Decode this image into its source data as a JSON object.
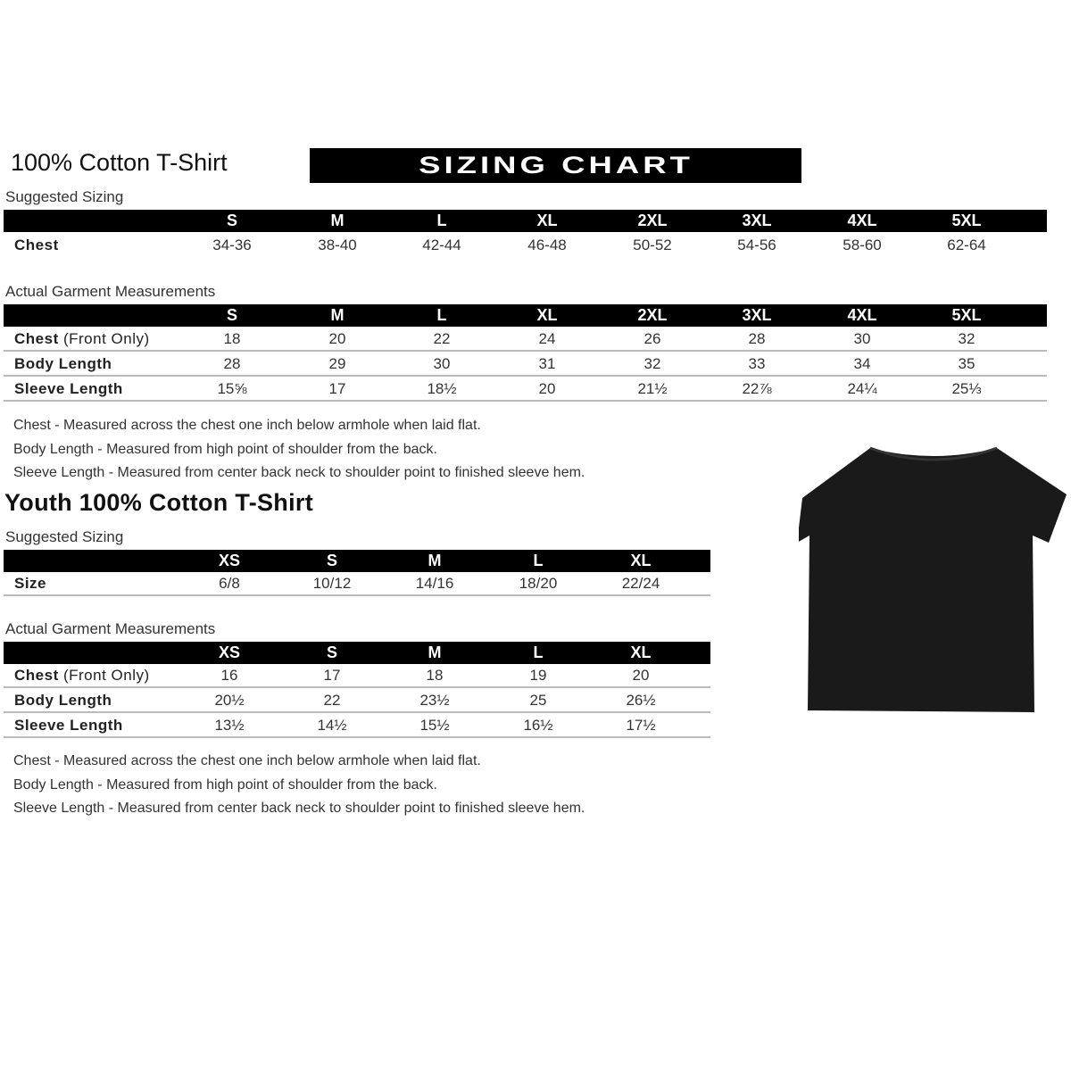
{
  "banner": "SIZING CHART",
  "adult": {
    "title": "100% Cotton T-Shirt",
    "suggested_label": "Suggested Sizing",
    "sizes": [
      "S",
      "M",
      "L",
      "XL",
      "2XL",
      "3XL",
      "4XL",
      "5XL"
    ],
    "suggested_rows": [
      {
        "label": "Chest",
        "values": [
          "34-36",
          "38-40",
          "42-44",
          "46-48",
          "50-52",
          "54-56",
          "58-60",
          "62-64"
        ]
      }
    ],
    "actual_label": "Actual Garment Measurements",
    "actual_rows": [
      {
        "label": "Chest",
        "suffix": " (Front Only)",
        "values": [
          "18",
          "20",
          "22",
          "24",
          "26",
          "28",
          "30",
          "32"
        ]
      },
      {
        "label": "Body Length",
        "values": [
          "28",
          "29",
          "30",
          "31",
          "32",
          "33",
          "34",
          "35"
        ]
      },
      {
        "label": "Sleeve Length",
        "values": [
          "15⅝",
          "17",
          "18½",
          "20",
          "21½",
          "22⅞",
          "24¼",
          "25⅓"
        ]
      }
    ],
    "notes": [
      "Chest - Measured across the chest one inch below armhole when laid flat.",
      "Body Length - Measured from high point of shoulder from the back.",
      "Sleeve Length - Measured from center back neck to shoulder point to finished sleeve hem."
    ]
  },
  "youth": {
    "title": "Youth 100% Cotton T-Shirt",
    "suggested_label": "Suggested Sizing",
    "sizes": [
      "XS",
      "S",
      "M",
      "L",
      "XL"
    ],
    "suggested_rows": [
      {
        "label": "Size",
        "values": [
          "6/8",
          "10/12",
          "14/16",
          "18/20",
          "22/24"
        ]
      }
    ],
    "actual_label": "Actual Garment Measurements",
    "actual_rows": [
      {
        "label": "Chest",
        "suffix": " (Front Only)",
        "values": [
          "16",
          "17",
          "18",
          "19",
          "20"
        ]
      },
      {
        "label": "Body Length",
        "values": [
          "20½",
          "22",
          "23½",
          "25",
          "26½"
        ]
      },
      {
        "label": "Sleeve Length",
        "values": [
          "13½",
          "14½",
          "15½",
          "16½",
          "17½"
        ]
      }
    ],
    "notes": [
      "Chest - Measured across the chest one inch below armhole when laid flat.",
      "Body Length - Measured from high point of shoulder from the back.",
      "Sleeve Length - Measured from center back neck to shoulder point to finished sleeve hem."
    ]
  },
  "colors": {
    "header_bg": "#000000",
    "tshirt": "#1a1a1a"
  }
}
